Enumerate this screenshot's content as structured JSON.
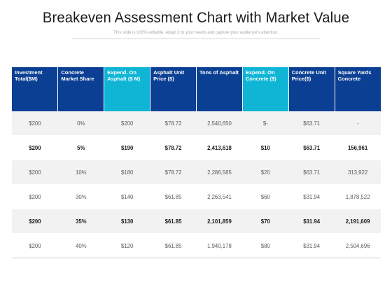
{
  "title": "Breakeven Assessment Chart with Market Value",
  "subtitle": "This slide is 100% editable. Adapt it to your needs and capture your audience's attention.",
  "colors": {
    "header_dark": "#0a3f93",
    "header_light": "#10b5d6",
    "row_shade": "#f2f2f2"
  },
  "table": {
    "headers": [
      "Investment Total($M)",
      "Concrete Market Share",
      "Expend. On Asphalt ($ M)",
      "Asphalt Unit Price ($)",
      "Tons of Asphalt",
      "Expend. On Concrete ($)",
      "Concrete Unit Price($)",
      "Square Yards Concrete"
    ],
    "rows": [
      [
        "$200",
        "0%",
        "$200",
        "$78.72",
        "2,540,650",
        "$-",
        "$63.71",
        "-"
      ],
      [
        "$200",
        "5%",
        "$190",
        "$78.72",
        "2,413,618",
        "$10",
        "$63.71",
        "156,961"
      ],
      [
        "$200",
        "10%",
        "$180",
        "$78.72",
        "2,286,585",
        "$20",
        "$63.71",
        "313,922"
      ],
      [
        "$200",
        "30%",
        "$140",
        "$61.85",
        "2,263,541",
        "$60",
        "$31.94",
        "1,878,522"
      ],
      [
        "$200",
        "35%",
        "$130",
        "$61.85",
        "2,101,859",
        "$70",
        "$31.94",
        "2,191,609"
      ],
      [
        "$200",
        "40%",
        "$120",
        "$61.85",
        "1,940,178",
        "$80",
        "$31.94",
        "2,504,696"
      ]
    ]
  }
}
